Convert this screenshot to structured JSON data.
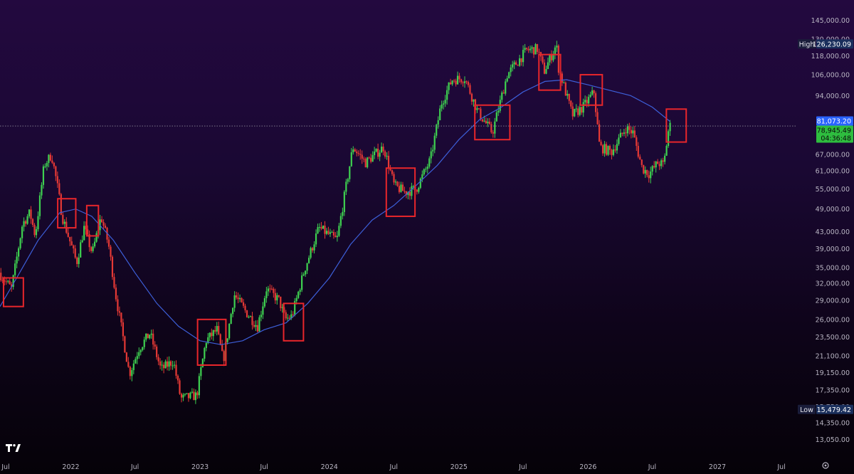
{
  "chart_data": {
    "type": "candlestick",
    "title": "",
    "y_scale": "log",
    "ylim": [
      12500,
      150000
    ],
    "xlim": [
      "2021-06-15",
      "2027-07-25"
    ],
    "y_ticks": [
      13050,
      14350,
      15750,
      17350,
      19150,
      21100,
      23500,
      26000,
      29000,
      32000,
      35000,
      39000,
      43000,
      49000,
      55000,
      61000,
      67000,
      94000,
      106000,
      118000,
      130000,
      145000
    ],
    "y_tick_labels": [
      "13,050.00",
      "14,350.00",
      "15,750.00",
      "17,350.00",
      "19,150.00",
      "21,100.00",
      "23,500.00",
      "26,000.00",
      "29,000.00",
      "32,000.00",
      "35,000.00",
      "39,000.00",
      "43,000.00",
      "49,000.00",
      "55,000.00",
      "61,000.00",
      "67,000.00",
      "94,000.00",
      "106,000.00",
      "118,000.00",
      "130,000.00",
      "145,000.00"
    ],
    "x_ticks": [
      {
        "date": "2021-07-01",
        "label": "Jul"
      },
      {
        "date": "2022-01-01",
        "label": "2022"
      },
      {
        "date": "2022-07-01",
        "label": "Jul"
      },
      {
        "date": "2023-01-01",
        "label": "2023"
      },
      {
        "date": "2023-07-01",
        "label": "Jul"
      },
      {
        "date": "2024-01-01",
        "label": "2024"
      },
      {
        "date": "2024-07-01",
        "label": "Jul"
      },
      {
        "date": "2025-01-01",
        "label": "2025"
      },
      {
        "date": "2025-07-01",
        "label": "Jul"
      },
      {
        "date": "2026-01-01",
        "label": "2026"
      },
      {
        "date": "2026-07-01",
        "label": "Jul"
      },
      {
        "date": "2027-01-01",
        "label": "2027"
      },
      {
        "date": "2027-07-01",
        "label": "Jul"
      }
    ],
    "price_path": [
      [
        "2021-06-15",
        34000
      ],
      [
        "2021-07-20",
        31000
      ],
      [
        "2021-08-20",
        45000
      ],
      [
        "2021-09-10",
        48000
      ],
      [
        "2021-09-25",
        42000
      ],
      [
        "2021-10-20",
        63000
      ],
      [
        "2021-11-10",
        67000
      ],
      [
        "2021-11-25",
        57000
      ],
      [
        "2021-12-10",
        47000
      ],
      [
        "2022-01-20",
        36000
      ],
      [
        "2022-02-10",
        44000
      ],
      [
        "2022-03-05",
        38000
      ],
      [
        "2022-03-30",
        47000
      ],
      [
        "2022-04-20",
        40000
      ],
      [
        "2022-05-10",
        30000
      ],
      [
        "2022-06-18",
        19000
      ],
      [
        "2022-07-15",
        22000
      ],
      [
        "2022-08-15",
        24000
      ],
      [
        "2022-09-15",
        19500
      ],
      [
        "2022-10-20",
        20500
      ],
      [
        "2022-11-10",
        16500
      ],
      [
        "2022-12-25",
        16800
      ],
      [
        "2023-01-20",
        23000
      ],
      [
        "2023-02-20",
        24500
      ],
      [
        "2023-03-10",
        20500
      ],
      [
        "2023-04-10",
        30000
      ],
      [
        "2023-05-15",
        27000
      ],
      [
        "2023-06-15",
        25000
      ],
      [
        "2023-07-10",
        31000
      ],
      [
        "2023-08-15",
        29000
      ],
      [
        "2023-09-01",
        26000
      ],
      [
        "2023-09-20",
        26500
      ],
      [
        "2023-10-25",
        34500
      ],
      [
        "2023-12-05",
        44000
      ],
      [
        "2024-01-25",
        41000
      ],
      [
        "2024-03-10",
        70000
      ],
      [
        "2024-04-15",
        64000
      ],
      [
        "2024-06-05",
        70000
      ],
      [
        "2024-07-05",
        56000
      ],
      [
        "2024-08-05",
        54000
      ],
      [
        "2024-09-05",
        55000
      ],
      [
        "2024-10-15",
        65000
      ],
      [
        "2024-11-15",
        90000
      ],
      [
        "2024-12-15",
        103000
      ],
      [
        "2025-01-20",
        104000
      ],
      [
        "2025-02-25",
        86000
      ],
      [
        "2025-04-08",
        76000
      ],
      [
        "2025-05-20",
        106000
      ],
      [
        "2025-07-14",
        122000
      ],
      [
        "2025-08-14",
        123000
      ],
      [
        "2025-09-01",
        108000
      ],
      [
        "2025-10-06",
        126000
      ],
      [
        "2025-10-11",
        111000
      ],
      [
        "2025-11-20",
        84000
      ],
      [
        "2025-12-20",
        88000
      ],
      [
        "2026-01-20",
        96000
      ],
      [
        "2026-02-05",
        70000
      ],
      [
        "2026-03-10",
        68000
      ],
      [
        "2026-04-20",
        78000
      ],
      [
        "2026-05-10",
        76000
      ],
      [
        "2026-06-05",
        62000
      ],
      [
        "2026-06-25",
        60000
      ],
      [
        "2026-07-20",
        64000
      ],
      [
        "2026-08-05",
        63000
      ],
      [
        "2026-08-20",
        79000
      ]
    ],
    "moving_average": [
      [
        "2021-06-15",
        28000
      ],
      [
        "2021-08-01",
        33000
      ],
      [
        "2021-10-01",
        41000
      ],
      [
        "2021-12-01",
        48000
      ],
      [
        "2022-01-15",
        49000
      ],
      [
        "2022-03-01",
        47000
      ],
      [
        "2022-05-01",
        41000
      ],
      [
        "2022-07-01",
        34000
      ],
      [
        "2022-09-01",
        28500
      ],
      [
        "2022-11-01",
        25000
      ],
      [
        "2023-01-01",
        23000
      ],
      [
        "2023-03-01",
        22500
      ],
      [
        "2023-05-01",
        23000
      ],
      [
        "2023-07-01",
        24500
      ],
      [
        "2023-09-01",
        25500
      ],
      [
        "2023-11-01",
        28500
      ],
      [
        "2024-01-01",
        33000
      ],
      [
        "2024-03-01",
        40000
      ],
      [
        "2024-05-01",
        46000
      ],
      [
        "2024-07-01",
        50000
      ],
      [
        "2024-09-01",
        56000
      ],
      [
        "2024-11-01",
        63000
      ],
      [
        "2025-01-01",
        73000
      ],
      [
        "2025-03-01",
        82000
      ],
      [
        "2025-05-01",
        88000
      ],
      [
        "2025-07-01",
        96000
      ],
      [
        "2025-09-01",
        102000
      ],
      [
        "2025-11-01",
        103000
      ],
      [
        "2026-01-01",
        100000
      ],
      [
        "2026-03-01",
        97000
      ],
      [
        "2026-05-01",
        94000
      ],
      [
        "2026-07-01",
        88000
      ],
      [
        "2026-08-20",
        81073.2
      ]
    ],
    "highlight_boxes": [
      {
        "start": "2021-06-25",
        "end": "2021-08-20",
        "high": 33000,
        "low": 28000
      },
      {
        "start": "2021-11-25",
        "end": "2022-01-15",
        "high": 52000,
        "low": 44000
      },
      {
        "start": "2022-02-15",
        "end": "2022-03-20",
        "high": 50000,
        "low": 42000
      },
      {
        "start": "2022-12-25",
        "end": "2023-03-15",
        "high": 26000,
        "low": 20000
      },
      {
        "start": "2023-08-25",
        "end": "2023-10-20",
        "high": 28500,
        "low": 23000
      },
      {
        "start": "2024-06-10",
        "end": "2024-08-30",
        "high": 62000,
        "low": 47000
      },
      {
        "start": "2025-02-15",
        "end": "2025-05-25",
        "high": 89000,
        "low": 73000
      },
      {
        "start": "2025-08-15",
        "end": "2025-10-15",
        "high": 119000,
        "low": 97000
      },
      {
        "start": "2025-12-10",
        "end": "2026-02-10",
        "high": 106000,
        "low": 89000
      },
      {
        "start": "2026-08-10",
        "end": "2026-10-05",
        "high": 87000,
        "low": 72000
      }
    ],
    "high": {
      "label": "High",
      "value": 126230.09,
      "value_label": "126,230.09"
    },
    "low": {
      "label": "Low",
      "value": 15479.42,
      "value_label": "15,479.42"
    },
    "ma_value": {
      "value": 81073.2,
      "value_label": "81,073.20",
      "color": "#2962ff"
    },
    "last_price": {
      "value": 78945.49,
      "value_label": "78,945.49",
      "countdown": "04:36:48",
      "color": "#2ebd3f"
    },
    "colors": {
      "up": "#3ed150",
      "down": "#e53935",
      "ma": "#3d5fd9",
      "box": "#e8262b"
    }
  }
}
